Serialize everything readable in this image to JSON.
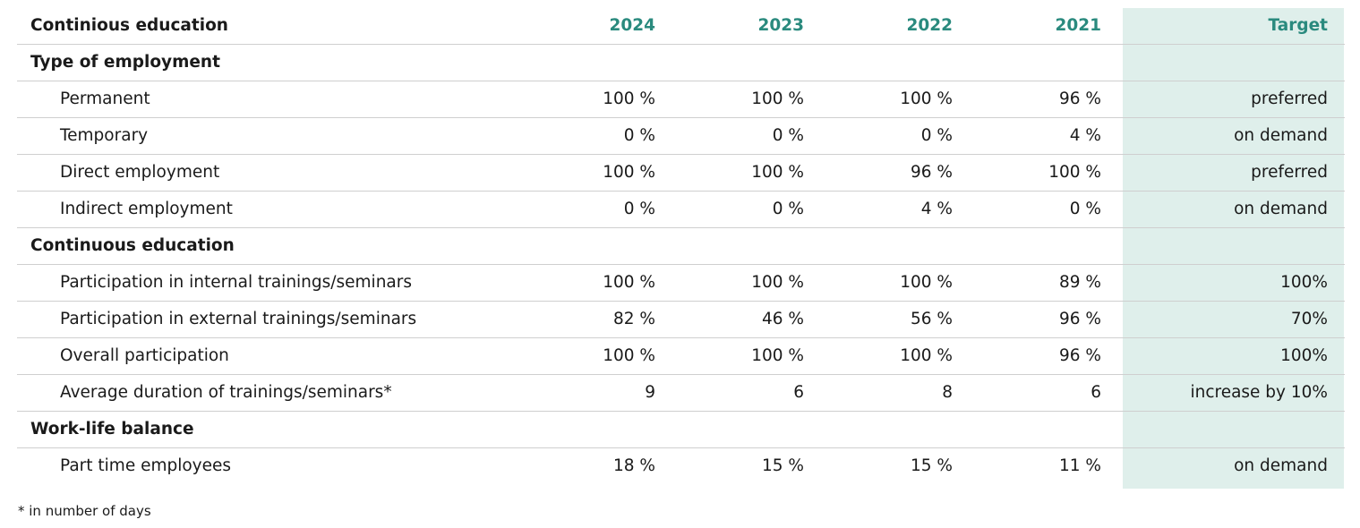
{
  "header": {
    "title": "Continious education",
    "years": [
      "2024",
      "2023",
      "2022",
      "2021"
    ],
    "target": "Target"
  },
  "rows": [
    {
      "type": "section",
      "label": "Type of employment"
    },
    {
      "type": "item",
      "label": "Permanent",
      "values": [
        "100 %",
        "100 %",
        "100 %",
        "96 %"
      ],
      "target": "preferred"
    },
    {
      "type": "item",
      "label": "Temporary",
      "values": [
        "0 %",
        "0 %",
        "0 %",
        "4 %"
      ],
      "target": "on demand"
    },
    {
      "type": "item",
      "label": "Direct employment",
      "values": [
        "100 %",
        "100 %",
        "96 %",
        "100 %"
      ],
      "target": "preferred"
    },
    {
      "type": "item",
      "label": "Indirect employment",
      "values": [
        "0 %",
        "0 %",
        "4 %",
        "0 %"
      ],
      "target": "on demand"
    },
    {
      "type": "section",
      "label": "Continuous education"
    },
    {
      "type": "item",
      "label": "Participation in internal trainings/seminars",
      "values": [
        "100 %",
        "100 %",
        "100 %",
        "89 %"
      ],
      "target": "100%"
    },
    {
      "type": "item",
      "label": "Participation in external trainings/seminars",
      "values": [
        "82 %",
        "46 %",
        "56 %",
        "96 %"
      ],
      "target": "70%"
    },
    {
      "type": "item",
      "label": "Overall participation",
      "values": [
        "100 %",
        "100 %",
        "100 %",
        "96 %"
      ],
      "target": "100%"
    },
    {
      "type": "item",
      "label": "Average duration of trainings/seminars*",
      "values": [
        "9",
        "6",
        "8",
        "6"
      ],
      "target": "increase by 10%"
    },
    {
      "type": "section",
      "label": "Work-life balance"
    },
    {
      "type": "item",
      "label": "Part time employees",
      "values": [
        "18 %",
        "15 %",
        "15 %",
        "11 %"
      ],
      "target": "on demand"
    }
  ],
  "footnote": "* in number of days",
  "colors": {
    "accent": "#2a8a7e",
    "target_bg": "#dfefeb",
    "rule": "#cfcfcf"
  }
}
